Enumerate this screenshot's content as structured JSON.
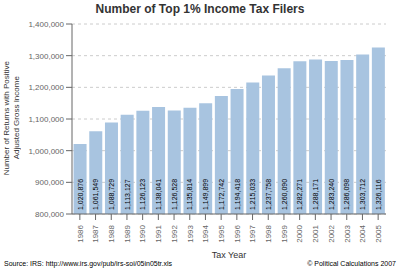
{
  "chart_data": {
    "type": "bar",
    "title": "Number of Top 1% Income Tax Filers",
    "xlabel": "Tax Year",
    "ylabel": "Number of Returns with Positive\nAdjusted Gross Income",
    "categories": [
      "1986",
      "1987",
      "1988",
      "1989",
      "1990",
      "1991",
      "1992",
      "1993",
      "1994",
      "1995",
      "1996",
      "1997",
      "1998",
      "1999",
      "2000",
      "2001",
      "2002",
      "2003",
      "2004",
      "2005"
    ],
    "values": [
      1020876,
      1061549,
      1088729,
      1113127,
      1126123,
      1138041,
      1126528,
      1135814,
      1149899,
      1172742,
      1194418,
      1215033,
      1237758,
      1260090,
      1282271,
      1288171,
      1283240,
      1286098,
      1303712,
      1326116
    ],
    "value_labels": [
      "1,020,876",
      "1,061,549",
      "1,088,729",
      "1,113,127",
      "1,126,123",
      "1,138,041",
      "1,126,528",
      "1,135,814",
      "1,149,899",
      "1,172,742",
      "1,194,418",
      "1,215,033",
      "1,237,758",
      "1,260,090",
      "1,282,271",
      "1,288,171",
      "1,283,240",
      "1,286,098",
      "1,303,712",
      "1,326,116"
    ],
    "data_labels": true,
    "color": "#a8c4e0",
    "ylim": [
      800000,
      1400000
    ],
    "yticks": [
      {
        "value": 800000,
        "label": "800,000"
      },
      {
        "value": 900000,
        "label": "900,000"
      },
      {
        "value": 1000000,
        "label": "1,000,000"
      },
      {
        "value": 1100000,
        "label": "1,100,000"
      },
      {
        "value": 1200000,
        "label": "1,200,000"
      },
      {
        "value": 1300000,
        "label": "1,300,000"
      },
      {
        "value": 1400000,
        "label": "1,400,000"
      }
    ],
    "grid": true,
    "annotations": [
      "Source: IRS: http://www.irs.gov/pub/irs-soi/05in05tr.xls",
      "© Political Calculations 2007"
    ]
  }
}
